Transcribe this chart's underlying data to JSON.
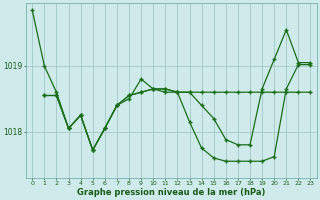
{
  "title": "Graphe pression niveau de la mer (hPa)",
  "bg_color": "#ceeaea",
  "grid_color": "#aacccc",
  "line_color": "#1a6e1a",
  "xlim": [
    -0.5,
    23.5
  ],
  "ylim": [
    1017.3,
    1019.95
  ],
  "yticks": [
    1018,
    1019
  ],
  "xticks": [
    0,
    1,
    2,
    3,
    4,
    5,
    6,
    7,
    8,
    9,
    10,
    11,
    12,
    13,
    14,
    15,
    16,
    17,
    18,
    19,
    20,
    21,
    22,
    23
  ],
  "series1_x": [
    0,
    1,
    2,
    3,
    4,
    5,
    6,
    7,
    8,
    9,
    10,
    11,
    12,
    13,
    14,
    15,
    16,
    17,
    18,
    19,
    20,
    21,
    22,
    23
  ],
  "series1_y": [
    1019.85,
    1019.0,
    1018.6,
    1018.05,
    1018.25,
    1017.72,
    1018.05,
    1018.4,
    1018.5,
    1018.8,
    1018.65,
    1018.65,
    1018.6,
    1018.6,
    1018.4,
    1018.2,
    1017.88,
    1017.8,
    1017.8,
    1018.65,
    1019.1,
    1019.55,
    1019.05,
    1019.05
  ],
  "series2_x": [
    1,
    2,
    3,
    4,
    5,
    6,
    7,
    8,
    9,
    10,
    11,
    12,
    13,
    14,
    15,
    16,
    17,
    18,
    19,
    20,
    21,
    22,
    23
  ],
  "series2_y": [
    1018.55,
    1018.55,
    1018.05,
    1018.25,
    1017.72,
    1018.05,
    1018.4,
    1018.55,
    1018.6,
    1018.65,
    1018.65,
    1018.6,
    1018.15,
    1017.75,
    1017.6,
    1017.55,
    1017.55,
    1017.55,
    1017.55,
    1017.62,
    1018.65,
    1019.02,
    1019.02
  ],
  "series3_x": [
    1,
    2,
    3,
    4,
    5,
    6,
    7,
    8,
    9,
    10,
    11,
    12,
    13,
    14,
    15,
    16,
    17,
    18,
    19,
    20,
    21,
    22,
    23
  ],
  "series3_y": [
    1018.55,
    1018.55,
    1018.05,
    1018.25,
    1017.72,
    1018.05,
    1018.4,
    1018.55,
    1018.6,
    1018.65,
    1018.6,
    1018.6,
    1018.6,
    1018.6,
    1018.6,
    1018.6,
    1018.6,
    1018.6,
    1018.6,
    1018.6,
    1018.6,
    1018.6,
    1018.6
  ]
}
